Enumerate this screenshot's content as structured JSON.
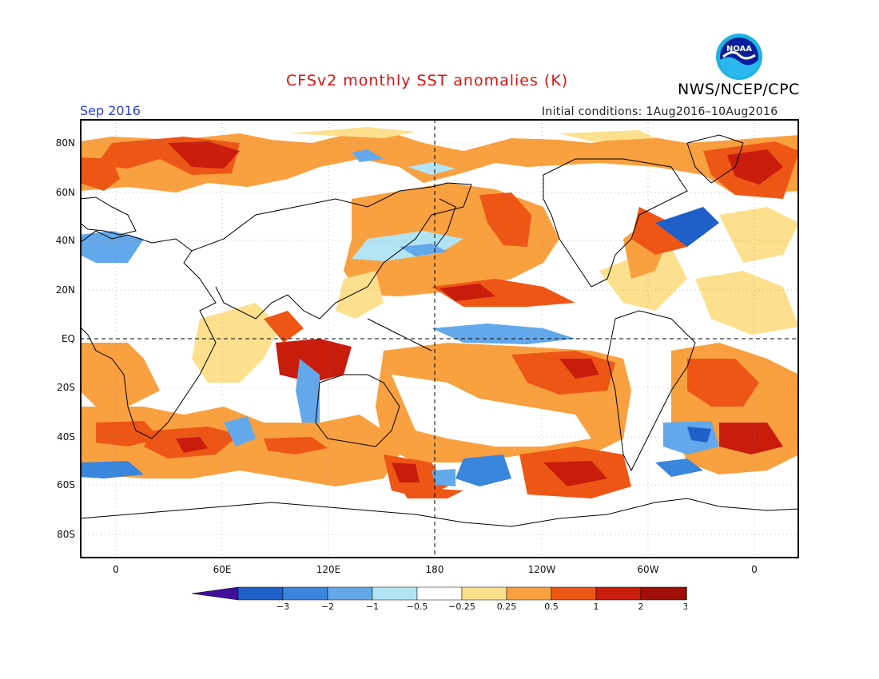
{
  "title": "CFSv2 monthly SST anomalies (K)",
  "org": "NWS/NCEP/CPC",
  "logo_text": "NOAA",
  "month": "Sep 2016",
  "initial_conditions": "Initial conditions: 1Aug2016–10Aug2016",
  "map": {
    "lat_labels": [
      "80N",
      "60N",
      "40N",
      "20N",
      "EQ",
      "20S",
      "40S",
      "60S",
      "80S"
    ],
    "lon_labels": [
      "0",
      "60E",
      "120E",
      "180",
      "120W",
      "60W",
      "0"
    ],
    "equator_dashed": true,
    "dateline_dashed": true,
    "grid": "dotted"
  },
  "colorbar": {
    "labels": [
      "−3",
      "−2",
      "−1",
      "−0.5",
      "−0.25",
      "0.25",
      "0.5",
      "1",
      "2",
      "3"
    ],
    "colors": [
      "#3f109e",
      "#1f60c8",
      "#3a86dc",
      "#63a8ea",
      "#b2e4f4",
      "#ffffff",
      "#fce08e",
      "#f9a040",
      "#ee5616",
      "#c81c0c",
      "#a01008",
      "#7a4a3a"
    ]
  },
  "colors": {
    "title": "#e01010",
    "month": "#2a3fd8",
    "land": "#ffffff"
  }
}
